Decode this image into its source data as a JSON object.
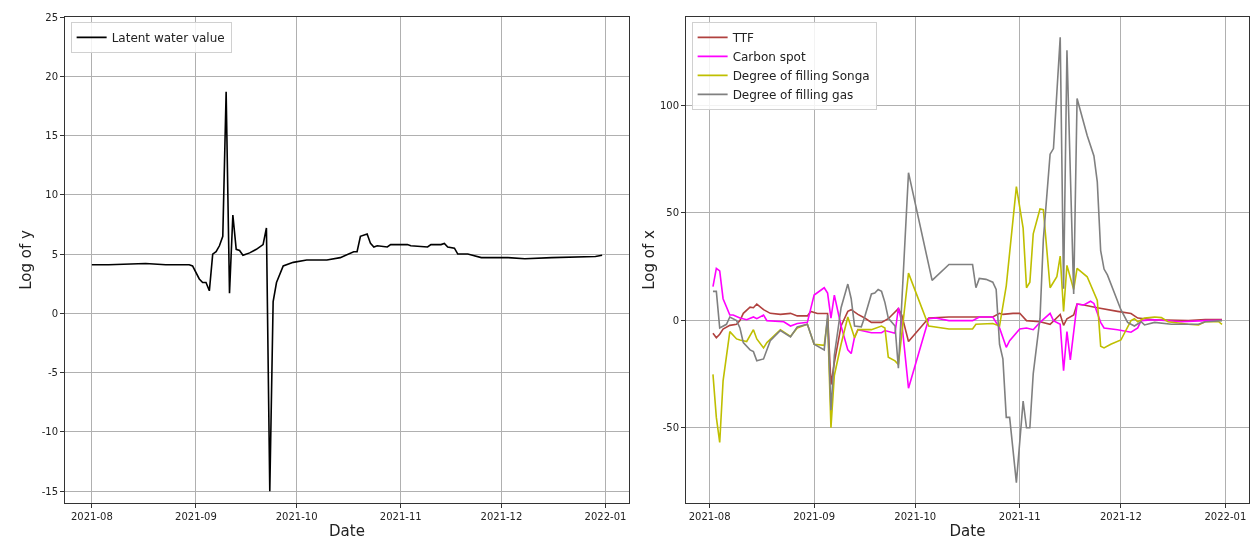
{
  "chart_data": [
    {
      "type": "line",
      "xlabel": "Date",
      "ylabel": "Log of y",
      "xlim": [
        "2021-07-24",
        "2022-01-08"
      ],
      "ylim": [
        -16,
        25
      ],
      "xticks": [
        {
          "value": "2021-08-01",
          "label": "2021-08"
        },
        {
          "value": "2021-09-01",
          "label": "2021-09"
        },
        {
          "value": "2021-10-01",
          "label": "2021-10"
        },
        {
          "value": "2021-11-01",
          "label": "2021-11"
        },
        {
          "value": "2021-12-01",
          "label": "2021-12"
        },
        {
          "value": "2022-01-01",
          "label": "2022-01"
        }
      ],
      "yticks": [
        -15,
        -10,
        -5,
        0,
        5,
        10,
        15,
        20,
        25
      ],
      "grid": true,
      "legend": "top left",
      "x": [
        "2021-08-01",
        "2021-08-06",
        "2021-08-17",
        "2021-08-23",
        "2021-08-30",
        "2021-08-31",
        "2021-09-02",
        "2021-09-03",
        "2021-09-04",
        "2021-09-05",
        "2021-09-06",
        "2021-09-07",
        "2021-09-08",
        "2021-09-09",
        "2021-09-10",
        "2021-09-11",
        "2021-09-12",
        "2021-09-13",
        "2021-09-14",
        "2021-09-15",
        "2021-09-17",
        "2021-09-19",
        "2021-09-21",
        "2021-09-22",
        "2021-09-23",
        "2021-09-24",
        "2021-09-25",
        "2021-09-27",
        "2021-09-30",
        "2021-10-04",
        "2021-10-10",
        "2021-10-14",
        "2021-10-18",
        "2021-10-19",
        "2021-10-20",
        "2021-10-22",
        "2021-10-23",
        "2021-10-24",
        "2021-10-25",
        "2021-10-28",
        "2021-10-29",
        "2021-11-03",
        "2021-11-04",
        "2021-11-09",
        "2021-11-10",
        "2021-11-13",
        "2021-11-14",
        "2021-11-15",
        "2021-11-17",
        "2021-11-18",
        "2021-11-21",
        "2021-11-25",
        "2021-12-03",
        "2021-12-08",
        "2021-12-16",
        "2021-12-29",
        "2021-12-31"
      ],
      "series": [
        {
          "name": "Latent water value",
          "color": "#000000",
          "values": [
            4.1,
            4.1,
            4.2,
            4.1,
            4.1,
            4.0,
            2.9,
            2.6,
            2.6,
            1.9,
            5.0,
            5.2,
            5.7,
            6.5,
            18.7,
            1.7,
            8.3,
            5.4,
            5.3,
            4.9,
            5.1,
            5.4,
            5.8,
            7.2,
            -15.0,
            1.0,
            2.6,
            4.0,
            4.3,
            4.5,
            4.5,
            4.7,
            5.2,
            5.2,
            6.5,
            6.7,
            5.9,
            5.6,
            5.7,
            5.6,
            5.8,
            5.8,
            5.7,
            5.6,
            5.8,
            5.8,
            5.9,
            5.6,
            5.5,
            5.0,
            5.0,
            4.7,
            4.7,
            4.6,
            4.7,
            4.8,
            4.9
          ]
        }
      ]
    },
    {
      "type": "line",
      "xlabel": "Date",
      "ylabel": "Log of x",
      "xlim": [
        "2021-07-25",
        "2022-01-08"
      ],
      "ylim": [
        -85,
        141
      ],
      "xticks": [
        {
          "value": "2021-08-01",
          "label": "2021-08"
        },
        {
          "value": "2021-09-01",
          "label": "2021-09"
        },
        {
          "value": "2021-10-01",
          "label": "2021-10"
        },
        {
          "value": "2021-11-01",
          "label": "2021-11"
        },
        {
          "value": "2021-12-01",
          "label": "2021-12"
        },
        {
          "value": "2022-01-01",
          "label": "2022-01"
        }
      ],
      "yticks": [
        -50,
        0,
        50,
        100
      ],
      "grid": true,
      "legend": "top left",
      "series": [
        {
          "name": "TTF",
          "color": "#b0413e",
          "x": [
            "2021-08-02",
            "2021-08-03",
            "2021-08-04",
            "2021-08-05",
            "2021-08-07",
            "2021-08-09",
            "2021-08-10",
            "2021-08-11",
            "2021-08-13",
            "2021-08-14",
            "2021-08-15",
            "2021-08-17",
            "2021-08-19",
            "2021-08-22",
            "2021-08-25",
            "2021-08-27",
            "2021-08-30",
            "2021-08-31",
            "2021-09-02",
            "2021-09-05",
            "2021-09-06",
            "2021-09-07",
            "2021-09-09",
            "2021-09-11",
            "2021-09-12",
            "2021-09-14",
            "2021-09-16",
            "2021-09-18",
            "2021-09-21",
            "2021-09-23",
            "2021-09-26",
            "2021-09-27",
            "2021-09-29",
            "2021-10-05",
            "2021-10-11",
            "2021-10-18",
            "2021-10-24",
            "2021-10-26",
            "2021-10-27",
            "2021-10-30",
            "2021-11-01",
            "2021-11-03",
            "2021-11-07",
            "2021-11-10",
            "2021-11-13",
            "2021-11-14",
            "2021-11-15",
            "2021-11-17",
            "2021-11-18",
            "2021-11-20",
            "2021-11-24",
            "2021-11-30",
            "2021-12-04",
            "2021-12-06",
            "2021-12-11",
            "2021-12-21",
            "2021-12-26",
            "2021-12-31"
          ],
          "values": [
            -6.1,
            -8.2,
            -6.5,
            -4.1,
            -2.4,
            -1.9,
            -0.2,
            3.2,
            6.1,
            5.8,
            7.5,
            4.9,
            3.2,
            2.7,
            3.2,
            2.0,
            2.0,
            4.1,
            3.1,
            3.1,
            -29.9,
            -19.7,
            -2.7,
            4.1,
            4.9,
            2.7,
            1.0,
            -1.0,
            -1.0,
            0.7,
            5.4,
            2.4,
            -9.9,
            1.0,
            1.5,
            1.5,
            1.5,
            3.2,
            2.7,
            3.2,
            3.2,
            -0.2,
            -0.7,
            -1.9,
            2.7,
            -2.4,
            0.7,
            2.4,
            7.5,
            7.1,
            5.8,
            4.1,
            3.1,
            1.0,
            0.2,
            -0.2,
            0.3,
            0.3
          ]
        },
        {
          "name": "Carbon spot",
          "color": "#ff00ff",
          "x": [
            "2021-08-02",
            "2021-08-03",
            "2021-08-04",
            "2021-08-05",
            "2021-08-07",
            "2021-08-08",
            "2021-08-10",
            "2021-08-12",
            "2021-08-14",
            "2021-08-15",
            "2021-08-17",
            "2021-08-18",
            "2021-08-23",
            "2021-08-25",
            "2021-08-27",
            "2021-08-30",
            "2021-09-01",
            "2021-09-04",
            "2021-09-05",
            "2021-09-06",
            "2021-09-07",
            "2021-09-09",
            "2021-09-11",
            "2021-09-12",
            "2021-09-13",
            "2021-09-14",
            "2021-09-18",
            "2021-09-21",
            "2021-09-22",
            "2021-09-25",
            "2021-09-26",
            "2021-09-27",
            "2021-09-29",
            "2021-10-05",
            "2021-10-07",
            "2021-10-11",
            "2021-10-18",
            "2021-10-20",
            "2021-10-24",
            "2021-10-26",
            "2021-10-28",
            "2021-10-29",
            "2021-11-01",
            "2021-11-03",
            "2021-11-05",
            "2021-11-07",
            "2021-11-10",
            "2021-11-11",
            "2021-11-13",
            "2021-11-14",
            "2021-11-15",
            "2021-11-16",
            "2021-11-18",
            "2021-11-20",
            "2021-11-22",
            "2021-11-23",
            "2021-11-25",
            "2021-11-26",
            "2021-11-30",
            "2021-12-04",
            "2021-12-06",
            "2021-12-07",
            "2021-12-11",
            "2021-12-19",
            "2021-12-26",
            "2021-12-31"
          ],
          "values": [
            15.6,
            24.1,
            22.9,
            10.0,
            2.4,
            2.4,
            1.0,
            0.2,
            1.5,
            0.7,
            2.4,
            -0.2,
            -0.7,
            -2.7,
            -1.5,
            -1.0,
            11.7,
            15.1,
            12.6,
            1.0,
            11.7,
            -2.7,
            -13.8,
            -15.5,
            -7.8,
            -4.4,
            -5.8,
            -5.8,
            -4.8,
            -6.1,
            5.8,
            -1.0,
            -31.6,
            0.7,
            1.0,
            -0.2,
            -0.2,
            1.5,
            1.5,
            -3.6,
            -12.6,
            -9.5,
            -4.1,
            -3.6,
            -4.4,
            -1.0,
            3.2,
            -0.2,
            -1.9,
            -23.5,
            -5.3,
            -18.4,
            7.5,
            7.1,
            8.8,
            7.8,
            -1.0,
            -3.6,
            -4.4,
            -5.6,
            -3.6,
            -0.2,
            0.2,
            -0.7,
            -0.2,
            0
          ]
        },
        {
          "name": "Degree of filling Songa",
          "color": "#bfbf00",
          "x": [
            "2021-08-02",
            "2021-08-03",
            "2021-08-04",
            "2021-08-05",
            "2021-08-07",
            "2021-08-09",
            "2021-08-10",
            "2021-08-12",
            "2021-08-14",
            "2021-08-15",
            "2021-08-17",
            "2021-08-18",
            "2021-08-22",
            "2021-08-25",
            "2021-08-27",
            "2021-08-30",
            "2021-09-01",
            "2021-09-04",
            "2021-09-05",
            "2021-09-06",
            "2021-09-07",
            "2021-09-09",
            "2021-09-11",
            "2021-09-13",
            "2021-09-14",
            "2021-09-18",
            "2021-09-21",
            "2021-09-22",
            "2021-09-23",
            "2021-09-25",
            "2021-09-26",
            "2021-09-29",
            "2021-10-05",
            "2021-10-11",
            "2021-10-18",
            "2021-10-19",
            "2021-10-24",
            "2021-10-26",
            "2021-10-28",
            "2021-10-31",
            "2021-11-02",
            "2021-11-03",
            "2021-11-04",
            "2021-11-05",
            "2021-11-07",
            "2021-11-08",
            "2021-11-10",
            "2021-11-12",
            "2021-11-13",
            "2021-11-14",
            "2021-11-15",
            "2021-11-17",
            "2021-11-18",
            "2021-11-21",
            "2021-11-24",
            "2021-11-25",
            "2021-11-26",
            "2021-11-28",
            "2021-12-01",
            "2021-12-04",
            "2021-12-05",
            "2021-12-06",
            "2021-12-08",
            "2021-12-11",
            "2021-12-13",
            "2021-12-15",
            "2021-12-21",
            "2021-12-24",
            "2021-12-26",
            "2021-12-30",
            "2021-12-31"
          ],
          "values": [
            -25.2,
            -45.2,
            -56.8,
            -28.2,
            -5.3,
            -8.7,
            -9.2,
            -9.9,
            -4.4,
            -8.7,
            -12.9,
            -10.4,
            -4.4,
            -7.5,
            -3.6,
            -1.9,
            -11.2,
            -11.7,
            0.7,
            -50.0,
            -25.7,
            -11.2,
            1.5,
            -8.2,
            -4.4,
            -4.4,
            -2.7,
            -3.6,
            -17.2,
            -18.9,
            -20.6,
            21.9,
            -2.7,
            -4.1,
            -4.1,
            -1.9,
            -1.5,
            -2.7,
            16.0,
            62.1,
            42.8,
            15.1,
            17.7,
            40.2,
            51.7,
            51.4,
            15.1,
            20.2,
            29.8,
            4.1,
            25.5,
            14.3,
            24.1,
            20.2,
            9.2,
            -12.1,
            -12.9,
            -11.2,
            -9.2,
            -0.2,
            0.7,
            -0.7,
            1.0,
            1.5,
            1.2,
            -0.7,
            -1.9,
            -2.2,
            -0.7,
            -0.7,
            -1.9
          ]
        },
        {
          "name": "Degree of filling gas",
          "color": "#808080",
          "x": [
            "2021-08-02",
            "2021-08-03",
            "2021-08-04",
            "2021-08-06",
            "2021-08-07",
            "2021-08-09",
            "2021-08-10",
            "2021-08-11",
            "2021-08-13",
            "2021-08-14",
            "2021-08-15",
            "2021-08-17",
            "2021-08-19",
            "2021-08-22",
            "2021-08-25",
            "2021-08-27",
            "2021-08-30",
            "2021-09-01",
            "2021-09-04",
            "2021-09-05",
            "2021-09-06",
            "2021-09-07",
            "2021-09-09",
            "2021-09-11",
            "2021-09-12",
            "2021-09-13",
            "2021-09-15",
            "2021-09-16",
            "2021-09-18",
            "2021-09-19",
            "2021-09-20",
            "2021-09-21",
            "2021-09-22",
            "2021-09-23",
            "2021-09-25",
            "2021-09-26",
            "2021-09-29",
            "2021-10-06",
            "2021-10-11",
            "2021-10-18",
            "2021-10-19",
            "2021-10-20",
            "2021-10-22",
            "2021-10-24",
            "2021-10-25",
            "2021-10-26",
            "2021-10-27",
            "2021-10-28",
            "2021-10-29",
            "2021-10-31",
            "2021-11-02",
            "2021-11-03",
            "2021-11-04",
            "2021-11-05",
            "2021-11-07",
            "2021-11-08",
            "2021-11-10",
            "2021-11-11",
            "2021-11-13",
            "2021-11-14",
            "2021-11-15",
            "2021-11-17",
            "2021-11-18",
            "2021-11-21",
            "2021-11-23",
            "2021-11-24",
            "2021-11-25",
            "2021-11-26",
            "2021-11-27",
            "2021-12-01",
            "2021-12-03",
            "2021-12-05",
            "2021-12-07",
            "2021-12-08",
            "2021-12-11",
            "2021-12-16",
            "2021-12-24",
            "2021-12-26",
            "2021-12-31"
          ],
          "values": [
            13.4,
            13.4,
            -3.6,
            -1.9,
            1.5,
            -0.2,
            -3.6,
            -10.4,
            -13.8,
            -14.6,
            -18.9,
            -18.0,
            -9.5,
            -4.8,
            -7.8,
            -3.1,
            -1.9,
            -11.2,
            -13.8,
            2.4,
            -41.8,
            -16.3,
            5.8,
            16.8,
            10.0,
            -2.7,
            -3.1,
            1.5,
            12.2,
            12.6,
            14.3,
            13.4,
            8.3,
            1.0,
            -2.7,
            -22.3,
            68.6,
            18.5,
            25.9,
            25.9,
            15.1,
            19.4,
            19.0,
            17.7,
            14.3,
            -11.2,
            -18.0,
            -45.2,
            -45.2,
            -75.5,
            -37.6,
            -50.0,
            -50.0,
            -24.8,
            0.7,
            37.6,
            77.2,
            79.8,
            131.6,
            14.6,
            125.5,
            12.2,
            103.1,
            85.9,
            76.4,
            64.3,
            32.4,
            23.8,
            21.1,
            4.9,
            -1.0,
            -2.7,
            -0.7,
            -2.2,
            -1.0,
            -1.9,
            -1.9,
            -0.7,
            -0.2
          ]
        }
      ]
    }
  ]
}
